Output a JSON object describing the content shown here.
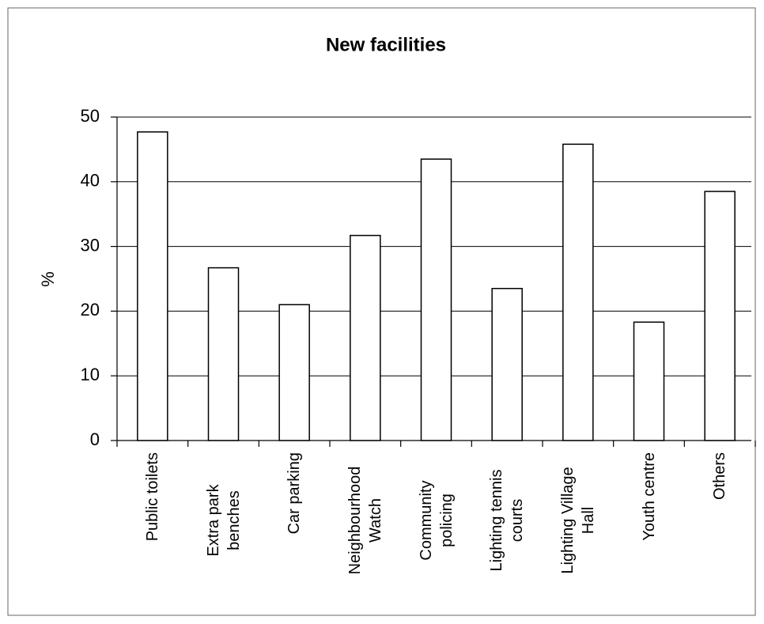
{
  "chart_data": {
    "type": "bar",
    "title": "New facilities",
    "ylabel": "%",
    "categories": [
      "Public toilets",
      "Extra park benches",
      "Car parking",
      "Neighbourhood Watch",
      "Community policing",
      "Lighting tennis courts",
      "Lighting Village Hall",
      "Youth centre",
      "Others"
    ],
    "values": [
      47.7,
      26.7,
      21,
      31.7,
      43.5,
      23.5,
      45.8,
      18.3,
      38.5
    ],
    "color": "#ffffff",
    "ylim": [
      0,
      50
    ],
    "yticks": [
      0,
      10,
      20,
      30,
      40,
      50
    ],
    "grid": true
  }
}
